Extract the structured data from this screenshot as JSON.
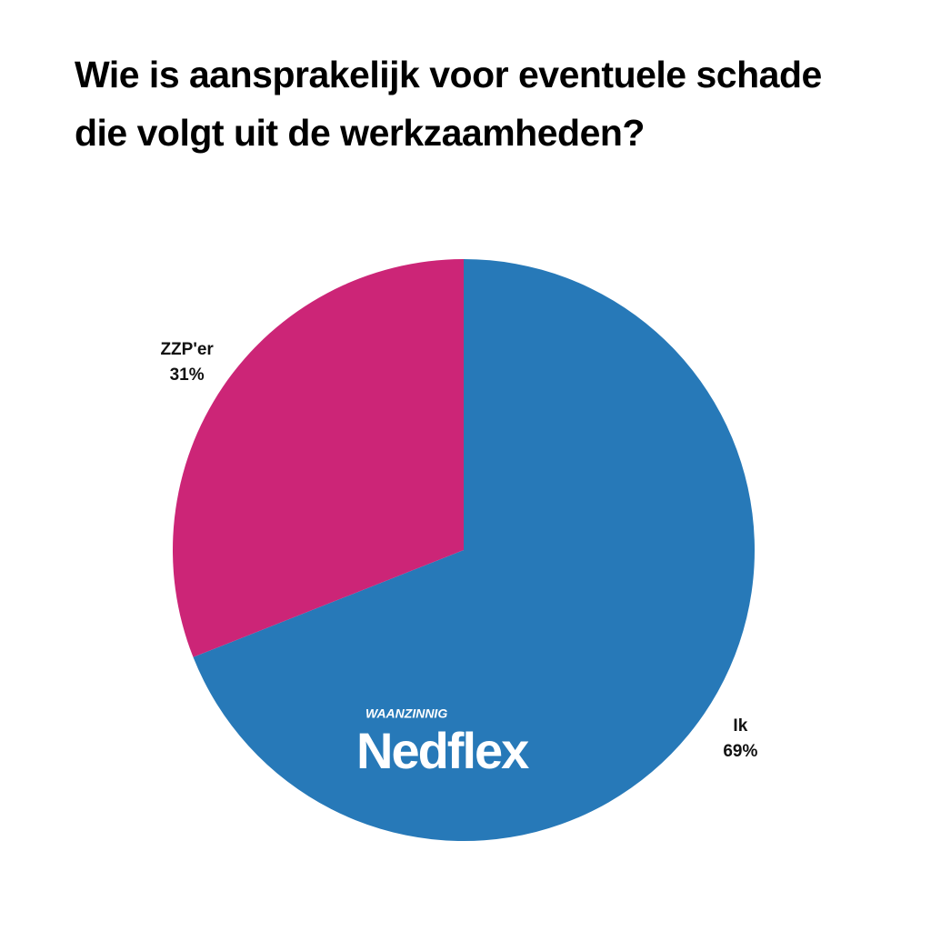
{
  "chart_data": {
    "type": "pie",
    "title": "Wie is aansprakelijk voor eventuele schade die volgt uit de werkzaamheden?",
    "categories": [
      "Ik",
      "ZZP'er"
    ],
    "values": [
      69,
      31
    ],
    "value_labels": [
      "69%",
      "31%"
    ],
    "colors": [
      "#2779b8",
      "#cc2577"
    ],
    "start_angle": 90,
    "direction": "clockwise"
  },
  "watermark": {
    "tagline": "WAANZINNIG",
    "name": "Nedflex"
  }
}
